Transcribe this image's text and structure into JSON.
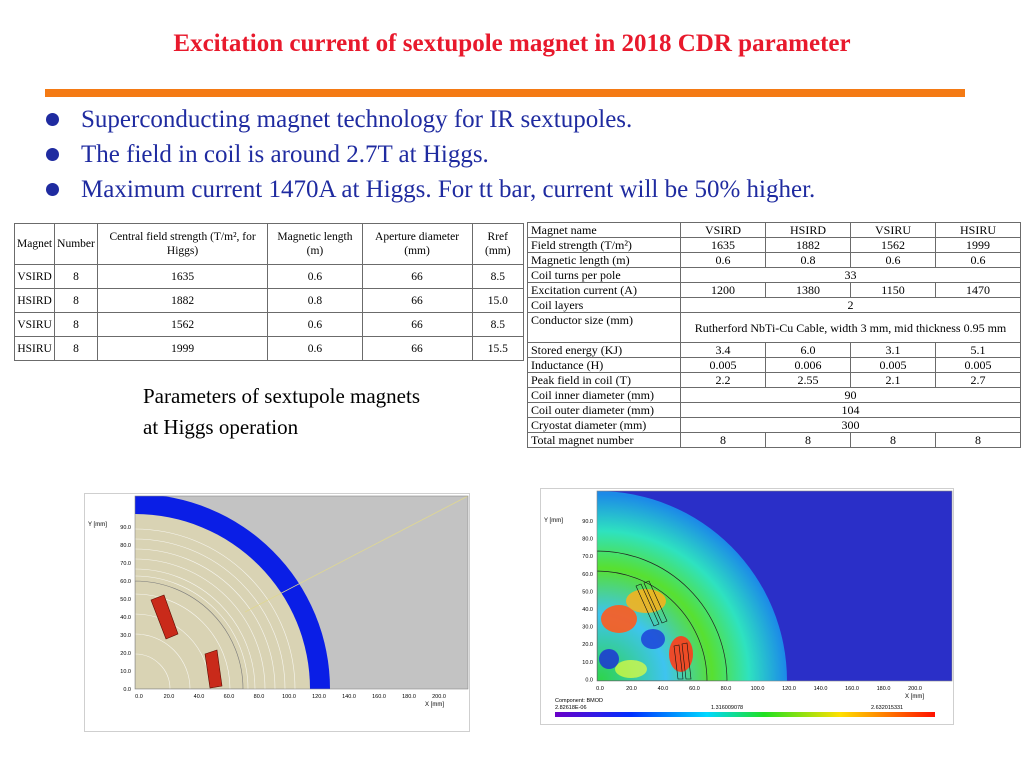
{
  "title": "Excitation current of sextupole magnet in 2018 CDR parameter",
  "colors": {
    "title": "#e8192c",
    "rule": "#f47a14",
    "bullet": "#1f2ba0"
  },
  "bullets": [
    "Superconducting magnet technology for IR sextupoles.",
    "The field in coil is around 2.7T at Higgs.",
    "Maximum current 1470A at Higgs.  For tt bar, current will be 50% higher."
  ],
  "table1": {
    "headers": [
      "Magnet",
      "Number",
      "Central field strength (T/m², for Higgs)",
      "Magnetic length (m)",
      "Aperture diameter (mm)",
      "Rref (mm)"
    ],
    "rows": [
      [
        "VSIRD",
        "8",
        "1635",
        "0.6",
        "66",
        "8.5"
      ],
      [
        "HSIRD",
        "8",
        "1882",
        "0.8",
        "66",
        "15.0"
      ],
      [
        "VSIRU",
        "8",
        "1562",
        "0.6",
        "66",
        "8.5"
      ],
      [
        "HSIRU",
        "8",
        "1999",
        "0.6",
        "66",
        "15.5"
      ]
    ]
  },
  "caption": [
    "Parameters of sextupole magnets",
    "at Higgs operation"
  ],
  "table2": {
    "header": [
      "Magnet name",
      "VSIRD",
      "HSIRD",
      "VSIRU",
      "HSIRU"
    ],
    "field_strength": [
      "Field strength (T/m²)",
      "1635",
      "1882",
      "1562",
      "1999"
    ],
    "magnetic_length": [
      "Magnetic length (m)",
      "0.6",
      "0.8",
      "0.6",
      "0.6"
    ],
    "coil_turns": [
      "Coil turns per pole",
      "33"
    ],
    "excitation_current": [
      "Excitation current (A)",
      "1200",
      "1380",
      "1150",
      "1470"
    ],
    "coil_layers": [
      "Coil layers",
      "2"
    ],
    "conductor_size": [
      "Conductor size (mm)",
      "Rutherford NbTi-Cu Cable, width 3 mm, mid thickness 0.95 mm"
    ],
    "stored_energy": [
      "Stored energy (KJ)",
      "3.4",
      "6.0",
      "3.1",
      "5.1"
    ],
    "inductance": [
      "Inductance (H)",
      "0.005",
      "0.006",
      "0.005",
      "0.005"
    ],
    "peak_field": [
      "Peak field in coil (T)",
      "2.2",
      "2.55",
      "2.1",
      "2.7"
    ],
    "coil_inner": [
      "Coil inner diameter (mm)",
      "90"
    ],
    "coil_outer": [
      "Coil outer diameter (mm)",
      "104"
    ],
    "cryostat": [
      "Cryostat diameter (mm)",
      "300"
    ],
    "total_number": [
      "Total magnet number",
      "8",
      "8",
      "8",
      "8"
    ]
  },
  "fig1": {
    "ylabel": "Y [mm]",
    "xlabel": "X [mm]",
    "yticks": [
      "90.0",
      "80.0",
      "70.0",
      "60.0",
      "50.0",
      "40.0",
      "30.0",
      "20.0",
      "10.0",
      "0.0"
    ],
    "xticks": [
      "0.0",
      "20.0",
      "40.0",
      "60.0",
      "80.0",
      "100.0",
      "120.0",
      "140.0",
      "160.0",
      "180.0",
      "200.0"
    ]
  },
  "fig2": {
    "ylabel": "Y [mm]",
    "xlabel": "X [mm]",
    "yticks": [
      "90.0",
      "80.0",
      "70.0",
      "60.0",
      "50.0",
      "40.0",
      "30.0",
      "20.0",
      "10.0",
      "0.0"
    ],
    "xticks": [
      "0.0",
      "20.0",
      "40.0",
      "60.0",
      "80.0",
      "100.0",
      "120.0",
      "140.0",
      "160.0",
      "180.0",
      "200.0"
    ],
    "component": "Component: BMOD",
    "scale_min": "2.82618E-06",
    "scale_mid": "1.316009078",
    "scale_max": "2.632015331"
  }
}
